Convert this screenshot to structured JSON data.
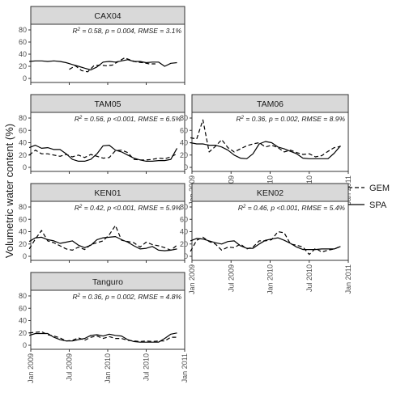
{
  "figure": {
    "ylabel": "Volumetric water content (%)",
    "x_tick_labels": [
      "Jan 2009",
      "Jul 2009",
      "Jan 2010",
      "Jul 2010",
      "Jan 2011"
    ],
    "y_tick_labels": [
      "0",
      "20",
      "40",
      "60",
      "80"
    ],
    "legend": [
      {
        "label": "GEM",
        "style": "dashed"
      },
      {
        "label": "SPA",
        "style": "solid"
      }
    ]
  },
  "chart_data": [
    {
      "type": "line",
      "title": "CAX04",
      "stats": {
        "r2": "0.58",
        "p": "p = 0.004",
        "rmse": "RMSE = 3.1%"
      },
      "xlim": [
        2009.0,
        2011.0
      ],
      "ylim": [
        0,
        80
      ],
      "x_tick_positions": [
        2009.0,
        2009.5,
        2010.0,
        2010.5,
        2011.0
      ],
      "y_ticks": [
        0,
        20,
        40,
        60,
        80
      ],
      "series": [
        {
          "name": "SPA",
          "style": "solid",
          "x": [
            2008.98,
            2009.06,
            2009.14,
            2009.22,
            2009.3,
            2009.38,
            2009.46,
            2009.54,
            2009.62,
            2009.7,
            2009.78,
            2009.86,
            2009.94,
            2010.02,
            2010.1,
            2010.18,
            2010.26,
            2010.34,
            2010.42,
            2010.5,
            2010.58,
            2010.66,
            2010.74,
            2010.82,
            2010.9
          ],
          "y": [
            28,
            29,
            29,
            28,
            29,
            28,
            26,
            23,
            20,
            17,
            14,
            19,
            27,
            28,
            27,
            29,
            31,
            28,
            28,
            26,
            27,
            27,
            20,
            25,
            26
          ]
        },
        {
          "name": "GEM",
          "style": "dashed",
          "x": [
            2009.5,
            2009.58,
            2009.66,
            2009.74,
            2009.82,
            2009.9,
            2009.98,
            2010.06,
            2010.14,
            2010.22,
            2010.3,
            2010.38,
            2010.46,
            2010.54,
            2010.62
          ],
          "y": [
            15,
            21,
            13,
            11,
            21,
            22,
            21,
            22,
            28,
            34,
            30,
            27,
            26,
            24,
            24
          ]
        }
      ]
    },
    {
      "type": "line",
      "title": "TAM05",
      "stats": {
        "r2": "0.56",
        "p": "p <0.001",
        "rmse": "RMSE = 6.5%"
      },
      "xlim": [
        2009.0,
        2011.0
      ],
      "ylim": [
        0,
        80
      ],
      "x_tick_positions": [
        2009.0,
        2009.5,
        2010.0,
        2010.5,
        2011.0
      ],
      "y_ticks": [
        0,
        20,
        40,
        60,
        80
      ],
      "series": [
        {
          "name": "SPA",
          "style": "solid",
          "x": [
            2008.98,
            2009.06,
            2009.14,
            2009.22,
            2009.3,
            2009.38,
            2009.46,
            2009.54,
            2009.62,
            2009.7,
            2009.78,
            2009.86,
            2009.94,
            2010.02,
            2010.1,
            2010.18,
            2010.26,
            2010.34,
            2010.42,
            2010.5,
            2010.58,
            2010.66,
            2010.74,
            2010.82,
            2010.9
          ],
          "y": [
            32,
            36,
            31,
            32,
            29,
            29,
            22,
            13,
            10,
            10,
            13,
            22,
            35,
            36,
            28,
            25,
            20,
            15,
            12,
            10,
            10,
            11,
            11,
            13,
            31
          ]
        },
        {
          "name": "GEM",
          "style": "dashed",
          "x": [
            2008.98,
            2009.06,
            2009.14,
            2009.22,
            2009.3,
            2009.38,
            2009.46,
            2009.54,
            2009.62,
            2009.7,
            2009.78,
            2009.86,
            2009.94,
            2010.02,
            2010.1,
            2010.18,
            2010.26,
            2010.34,
            2010.42,
            2010.5,
            2010.58,
            2010.66,
            2010.74,
            2010.82,
            2010.9
          ],
          "y": [
            20,
            28,
            22,
            22,
            20,
            18,
            21,
            17,
            20,
            16,
            21,
            18,
            15,
            16,
            27,
            28,
            24,
            13,
            12,
            12,
            13,
            15,
            14,
            17,
            22
          ]
        }
      ]
    },
    {
      "type": "line",
      "title": "TAM06",
      "stats": {
        "r2": "0.36",
        "p": "p = 0.002",
        "rmse": "RMSE = 8.9%"
      },
      "xlim": [
        2009.0,
        2011.0
      ],
      "ylim": [
        0,
        80
      ],
      "x_tick_positions": [
        2009.0,
        2009.5,
        2010.0,
        2010.5,
        2011.0
      ],
      "y_ticks": [
        0,
        20,
        40,
        60,
        80
      ],
      "series": [
        {
          "name": "SPA",
          "style": "solid",
          "x": [
            2008.98,
            2009.06,
            2009.14,
            2009.22,
            2009.3,
            2009.38,
            2009.46,
            2009.54,
            2009.62,
            2009.7,
            2009.78,
            2009.86,
            2009.94,
            2010.02,
            2010.1,
            2010.18,
            2010.26,
            2010.34,
            2010.42,
            2010.5,
            2010.58,
            2010.66,
            2010.74,
            2010.82,
            2010.9
          ],
          "y": [
            40,
            38,
            38,
            36,
            36,
            33,
            28,
            20,
            15,
            14,
            22,
            38,
            42,
            40,
            33,
            30,
            26,
            22,
            15,
            14,
            14,
            14,
            14,
            23,
            35
          ]
        },
        {
          "name": "GEM",
          "style": "dashed",
          "x": [
            2008.98,
            2009.06,
            2009.14,
            2009.22,
            2009.3,
            2009.38,
            2009.46,
            2009.54,
            2009.62,
            2009.7,
            2009.78,
            2009.86,
            2009.94,
            2010.02,
            2010.1,
            2010.18,
            2010.26,
            2010.34,
            2010.42,
            2010.5,
            2010.58,
            2010.66,
            2010.74,
            2010.82,
            2010.9
          ],
          "y": [
            48,
            46,
            77,
            25,
            34,
            45,
            32,
            25,
            30,
            35,
            38,
            40,
            33,
            36,
            32,
            25,
            28,
            24,
            21,
            22,
            17,
            19,
            26,
            32,
            34
          ]
        }
      ]
    },
    {
      "type": "line",
      "title": "KEN01",
      "stats": {
        "r2": "0.42",
        "p": "p <0.001",
        "rmse": "RMSE = 5.9%"
      },
      "xlim": [
        2009.0,
        2011.0
      ],
      "ylim": [
        0,
        80
      ],
      "x_tick_positions": [
        2009.0,
        2009.5,
        2010.0,
        2010.5,
        2011.0
      ],
      "y_ticks": [
        0,
        20,
        40,
        60,
        80
      ],
      "series": [
        {
          "name": "SPA",
          "style": "solid",
          "x": [
            2008.98,
            2009.06,
            2009.14,
            2009.22,
            2009.3,
            2009.38,
            2009.46,
            2009.54,
            2009.62,
            2009.7,
            2009.78,
            2009.86,
            2009.94,
            2010.02,
            2010.1,
            2010.18,
            2010.26,
            2010.34,
            2010.42,
            2010.5,
            2010.58,
            2010.66,
            2010.74,
            2010.82,
            2010.9
          ],
          "y": [
            24,
            30,
            31,
            27,
            25,
            21,
            23,
            25,
            18,
            14,
            18,
            27,
            30,
            31,
            32,
            27,
            23,
            17,
            12,
            13,
            16,
            10,
            9,
            10,
            12
          ]
        },
        {
          "name": "GEM",
          "style": "dashed",
          "x": [
            2008.98,
            2009.06,
            2009.14,
            2009.22,
            2009.3,
            2009.38,
            2009.46,
            2009.54,
            2009.62,
            2009.7,
            2009.78,
            2009.86,
            2009.94,
            2010.02,
            2010.1,
            2010.18,
            2010.26,
            2010.34,
            2010.42,
            2010.5,
            2010.58,
            2010.66,
            2010.74,
            2010.82,
            2010.9
          ],
          "y": [
            12,
            28,
            42,
            25,
            22,
            17,
            12,
            10,
            15,
            11,
            19,
            22,
            25,
            35,
            50,
            26,
            24,
            22,
            15,
            23,
            19,
            17,
            14,
            10,
            18
          ]
        }
      ]
    },
    {
      "type": "line",
      "title": "KEN02",
      "stats": {
        "r2": "0.46",
        "p": "p <0.001",
        "rmse": "RMSE = 5.4%"
      },
      "xlim": [
        2009.0,
        2011.0
      ],
      "ylim": [
        0,
        80
      ],
      "x_tick_positions": [
        2009.0,
        2009.5,
        2010.0,
        2010.5,
        2011.0
      ],
      "y_ticks": [
        0,
        20,
        40,
        60,
        80
      ],
      "series": [
        {
          "name": "SPA",
          "style": "solid",
          "x": [
            2008.98,
            2009.06,
            2009.14,
            2009.22,
            2009.3,
            2009.38,
            2009.46,
            2009.54,
            2009.62,
            2009.7,
            2009.78,
            2009.86,
            2009.94,
            2010.02,
            2010.1,
            2010.18,
            2010.26,
            2010.34,
            2010.42,
            2010.5,
            2010.58,
            2010.66,
            2010.74,
            2010.82,
            2010.9
          ],
          "y": [
            25,
            29,
            28,
            25,
            22,
            20,
            24,
            25,
            17,
            13,
            13,
            20,
            26,
            28,
            30,
            26,
            21,
            15,
            11,
            11,
            11,
            12,
            12,
            12,
            16
          ]
        },
        {
          "name": "GEM",
          "style": "dashed",
          "x": [
            2008.98,
            2009.06,
            2009.14,
            2009.22,
            2009.3,
            2009.38,
            2009.46,
            2009.54,
            2009.62,
            2009.7,
            2009.78,
            2009.86,
            2009.94,
            2010.02,
            2010.1,
            2010.18,
            2010.26,
            2010.34,
            2010.42,
            2010.5,
            2010.58,
            2010.66,
            2010.74,
            2010.82,
            2010.9
          ],
          "y": [
            8,
            26,
            31,
            24,
            20,
            10,
            15,
            14,
            20,
            12,
            15,
            25,
            25,
            27,
            40,
            38,
            20,
            18,
            15,
            3,
            13,
            7,
            10,
            12,
            16
          ]
        }
      ]
    },
    {
      "type": "line",
      "title": "Tanguro",
      "stats": {
        "r2": "0.36",
        "p": "p = 0.002",
        "rmse": "RMSE = 4.8%"
      },
      "xlim": [
        2009.0,
        2011.0
      ],
      "ylim": [
        0,
        80
      ],
      "x_tick_positions": [
        2009.0,
        2009.5,
        2010.0,
        2010.5,
        2011.0
      ],
      "y_ticks": [
        0,
        20,
        40,
        60,
        80
      ],
      "series": [
        {
          "name": "SPA",
          "style": "solid",
          "x": [
            2008.98,
            2009.06,
            2009.14,
            2009.22,
            2009.3,
            2009.38,
            2009.46,
            2009.54,
            2009.62,
            2009.7,
            2009.78,
            2009.86,
            2009.94,
            2010.02,
            2010.1,
            2010.18,
            2010.26,
            2010.34,
            2010.42,
            2010.5,
            2010.58,
            2010.66,
            2010.74,
            2010.82,
            2010.9
          ],
          "y": [
            16,
            19,
            19,
            19,
            13,
            9,
            7,
            7,
            9,
            11,
            16,
            17,
            15,
            18,
            16,
            15,
            9,
            6,
            5,
            5,
            5,
            5,
            11,
            18,
            20
          ]
        },
        {
          "name": "GEM",
          "style": "dashed",
          "x": [
            2008.98,
            2009.06,
            2009.14,
            2009.22,
            2009.3,
            2009.38,
            2009.46,
            2009.54,
            2009.62,
            2009.7,
            2009.78,
            2009.86,
            2009.94,
            2010.02,
            2010.1,
            2010.18,
            2010.26,
            2010.34,
            2010.42,
            2010.5,
            2010.58,
            2010.66,
            2010.74,
            2010.82,
            2010.9
          ],
          "y": [
            20,
            21,
            22,
            17,
            15,
            12,
            7,
            8,
            12,
            8,
            13,
            15,
            11,
            14,
            11,
            11,
            8,
            7,
            6,
            7,
            6,
            7,
            7,
            13,
            13
          ]
        }
      ]
    }
  ]
}
